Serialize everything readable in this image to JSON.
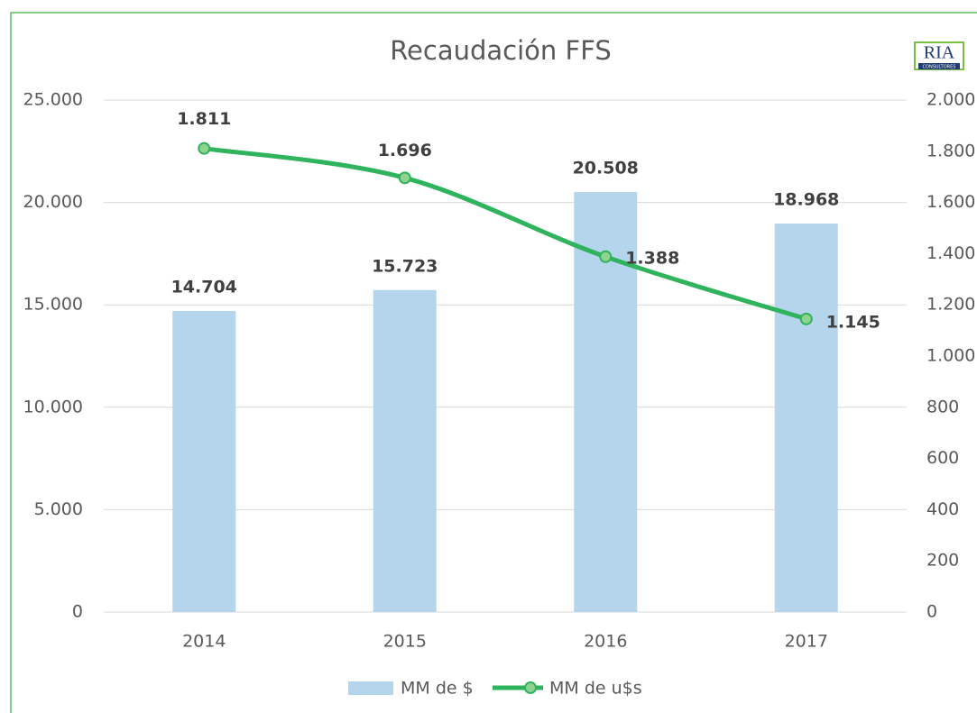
{
  "chart_data": {
    "type": "combo",
    "title": "Recaudación FFS",
    "logo": {
      "text": "RIA",
      "subtext": "CONSULTORES"
    },
    "categories": [
      "2014",
      "2015",
      "2016",
      "2017"
    ],
    "series": [
      {
        "name": "MM de $",
        "type": "bar",
        "axis": "y",
        "color": "#b5d5ec",
        "values": [
          14704,
          15723,
          20508,
          18968
        ],
        "value_labels": [
          "14.704",
          "15.723",
          "20.508",
          "18.968"
        ]
      },
      {
        "name": "MM de u$s",
        "type": "line",
        "axis": "y2",
        "color": "#2fb35c",
        "marker_color": "#90d28f",
        "values": [
          1811,
          1696,
          1388,
          1145
        ],
        "value_labels": [
          "1.811",
          "1.696",
          "1.388",
          "1.145"
        ]
      }
    ],
    "ylim": [
      0,
      25000
    ],
    "yticks": [
      0,
      {
        "value": 5000,
        "label": "5.000"
      },
      {
        "value": 10000,
        "label": "10.000"
      },
      {
        "value": 15000,
        "label": "15.000"
      },
      {
        "value": 20000,
        "label": "20.000"
      },
      {
        "value": 25000,
        "label": "25.000"
      }
    ],
    "y2lim": [
      0,
      2000
    ],
    "y2ticks": [
      0,
      200,
      400,
      600,
      800,
      {
        "value": 1000,
        "label": "1.000"
      },
      {
        "value": 1200,
        "label": "1.200"
      },
      {
        "value": 1400,
        "label": "1.400"
      },
      {
        "value": 1600,
        "label": "1.600"
      },
      {
        "value": 1800,
        "label": "1.800"
      },
      {
        "value": 2000,
        "label": "2.000"
      }
    ],
    "grid": true,
    "legend": "bottom"
  }
}
